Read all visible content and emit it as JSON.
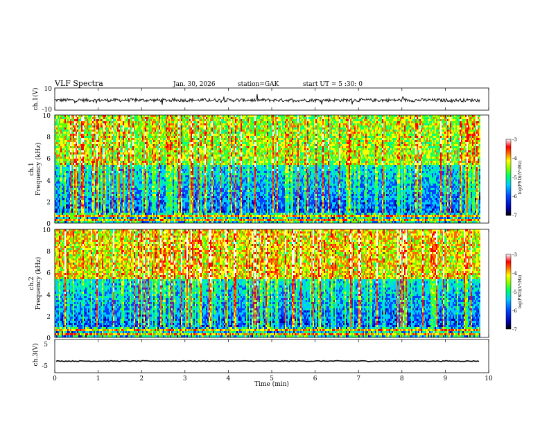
{
  "header": {
    "title": "VLF  Spectra",
    "date": "Jan. 30, 2026",
    "station": "station=GAK",
    "start": "start  UT  =   5  :30: 0"
  },
  "chart_data": [
    {
      "type": "line",
      "name": "ch1-waveform",
      "ylabel": "ch.1(V)",
      "xlim": [
        0,
        10
      ],
      "ylim": [
        -10,
        10
      ],
      "yticks": [
        "10",
        "-10"
      ],
      "note": "noisy waveform around ~-1 V with bursts",
      "baseline": -1.0
    },
    {
      "type": "heatmap",
      "name": "ch1-spectrogram",
      "ylabel": "ch.1\nFrequency (kHz)",
      "ylabel_line1": "ch.1",
      "ylabel_line2": "Frequency  (kHz)",
      "xlim": [
        0,
        10
      ],
      "data_end_min": 9.8,
      "ylim": [
        0,
        10
      ],
      "yticks": [
        "0",
        "2",
        "4",
        "6",
        "8",
        "10"
      ],
      "colorbar": {
        "label": "log(PSD)(V²/Hz)",
        "min": -7,
        "max": -3,
        "ticks": [
          "-3",
          "-4",
          "-5",
          "-6",
          "-7"
        ]
      }
    },
    {
      "type": "heatmap",
      "name": "ch2-spectrogram",
      "ylabel_line1": "ch.2",
      "ylabel_line2": "Frequency  (kHz)",
      "xlim": [
        0,
        10
      ],
      "data_end_min": 9.8,
      "ylim": [
        0,
        10
      ],
      "yticks": [
        "0",
        "2",
        "4",
        "6",
        "8",
        "10"
      ],
      "colorbar": {
        "label": "log(PSD)(V²/Hz)",
        "min": -7,
        "max": -3,
        "ticks": [
          "-3",
          "-4",
          "-5",
          "-6",
          "-7"
        ]
      }
    },
    {
      "type": "line",
      "name": "ch3-waveform",
      "ylabel": "ch.3(V)",
      "xlim": [
        0,
        10
      ],
      "ylim": [
        -5,
        5
      ],
      "yticks": [
        "5",
        "0",
        "-5"
      ],
      "baseline": -1.5
    }
  ],
  "xaxis": {
    "label": "Time  (min)",
    "ticks": [
      "0",
      "1",
      "2",
      "3",
      "4",
      "5",
      "6",
      "7",
      "8",
      "9",
      "10"
    ]
  },
  "colors": {
    "scale": [
      "#000000",
      "#0000aa",
      "#0044ff",
      "#00ccff",
      "#00ff88",
      "#66ff00",
      "#ffff00",
      "#ff6600",
      "#ff0000",
      "#ffffff"
    ]
  }
}
